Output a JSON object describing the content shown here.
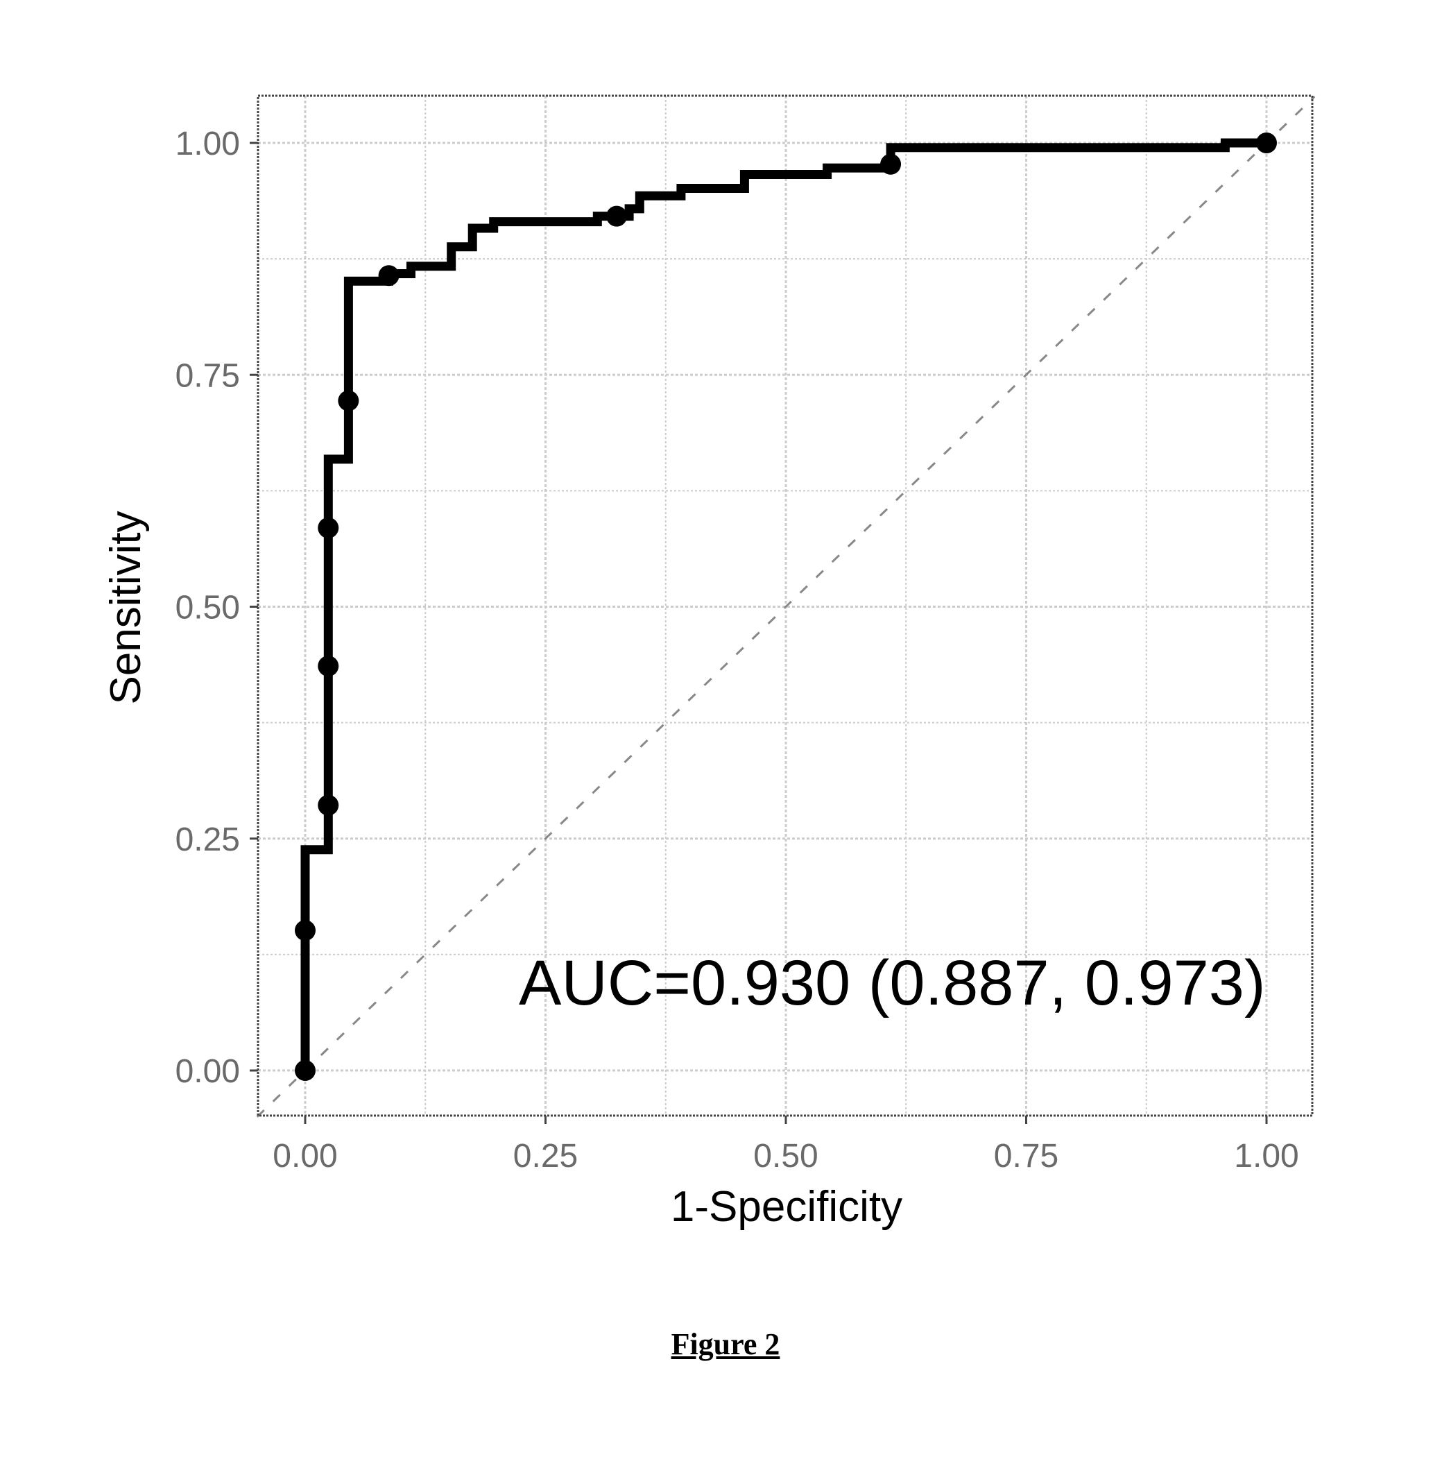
{
  "chart_data": {
    "type": "line",
    "title": "",
    "xlabel": "1-Specificity",
    "ylabel": "Sensitivity",
    "xlim": [
      -0.1,
      1.1
    ],
    "ylim": [
      -0.05,
      1.05
    ],
    "x_ticks": [
      0.0,
      0.25,
      0.5,
      0.75,
      1.0
    ],
    "y_ticks": [
      0.0,
      0.25,
      0.5,
      0.75,
      1.0
    ],
    "x_tick_labels": [
      "0.00",
      "0.25",
      "0.50",
      "0.75",
      "1.00"
    ],
    "y_tick_labels": [
      "0.00",
      "0.25",
      "0.50",
      "0.75",
      "1.00"
    ],
    "grid": true,
    "annotation": "AUC=0.930 (0.887, 0.973)",
    "series": [
      {
        "type": "step",
        "x": [
          0.0,
          0.0,
          0.024,
          0.024,
          0.045,
          0.045,
          0.087,
          0.087,
          0.11,
          0.11,
          0.152,
          0.152,
          0.174,
          0.174,
          0.196,
          0.196,
          0.304,
          0.304,
          0.337,
          0.337,
          0.348,
          0.348,
          0.391,
          0.391,
          0.457,
          0.457,
          0.543,
          0.543,
          0.609,
          0.609,
          0.957,
          0.957,
          1.0
        ],
        "y": [
          0.0,
          0.238,
          0.238,
          0.659,
          0.659,
          0.851,
          0.851,
          0.859,
          0.859,
          0.867,
          0.867,
          0.888,
          0.888,
          0.908,
          0.908,
          0.915,
          0.915,
          0.921,
          0.921,
          0.929,
          0.929,
          0.943,
          0.943,
          0.951,
          0.951,
          0.966,
          0.966,
          0.973,
          0.973,
          0.995,
          0.995,
          1.0,
          1.0
        ]
      },
      {
        "type": "points",
        "x": [
          0.0,
          0.0,
          0.024,
          0.024,
          0.024,
          0.045,
          0.087,
          0.324,
          0.609,
          1.0
        ],
        "y": [
          0.0,
          0.151,
          0.286,
          0.436,
          0.585,
          0.722,
          0.857,
          0.921,
          0.977,
          1.0
        ]
      },
      {
        "type": "reference",
        "x": [
          -0.05,
          1.05
        ],
        "y": [
          -0.05,
          1.05
        ]
      }
    ]
  },
  "caption": "Figure 2",
  "colors": {
    "curve": "#000000",
    "grid": "#cccccc",
    "frame": "#444444",
    "diagonal": "#888888"
  }
}
